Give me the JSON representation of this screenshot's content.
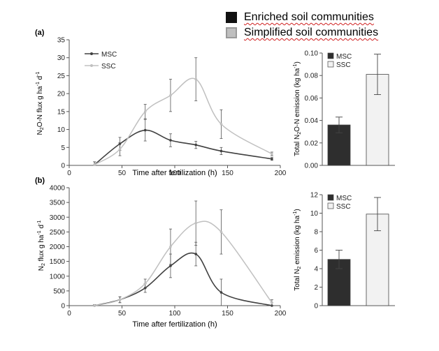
{
  "figure_legend": {
    "items": [
      {
        "label": "Enriched soil communities",
        "color": "#111111"
      },
      {
        "label": "Simplified soil communities",
        "color": "#bfbfbf"
      }
    ]
  },
  "colors": {
    "msc": "#404040",
    "ssc": "#c0c0c0",
    "bar_msc": "#2e2e2e",
    "bar_ssc": "#f2f2f2"
  },
  "chart_data": [
    {
      "id": "a_line",
      "type": "line",
      "panel_label": "(a)",
      "xlabel": "Time after fertilization (h)",
      "ylabel": "N2O-N flux g ha-1 d-1",
      "xlim": [
        0,
        200
      ],
      "ylim": [
        0,
        35
      ],
      "xticks": [
        0,
        50,
        100,
        150,
        200
      ],
      "yticks": [
        0,
        5,
        10,
        15,
        20,
        25,
        30,
        35
      ],
      "legend_position": "top-left",
      "series": [
        {
          "name": "MSC",
          "x": [
            24,
            48,
            72,
            96,
            120,
            144,
            192
          ],
          "y": [
            0.2,
            6.0,
            9.8,
            7.0,
            5.7,
            4.0,
            1.8
          ],
          "err": [
            0.8,
            1.8,
            3.0,
            1.8,
            1.0,
            1.0,
            0.4
          ]
        },
        {
          "name": "SSC",
          "x": [
            24,
            48,
            72,
            96,
            120,
            144,
            192
          ],
          "y": [
            0.2,
            4.5,
            15.0,
            19.5,
            24.0,
            11.5,
            3.2
          ],
          "err": [
            0.8,
            1.8,
            2.0,
            4.5,
            6.0,
            4.0,
            0.5
          ]
        }
      ]
    },
    {
      "id": "a_bar",
      "type": "bar",
      "ylabel": "Total N2O-N emission (kg ha-1)",
      "categories": [
        "MSC",
        "SSC"
      ],
      "values": [
        0.036,
        0.081
      ],
      "err": [
        0.007,
        0.018
      ],
      "ylim": [
        0,
        0.1
      ],
      "yticks": [
        "0.00",
        "0.02",
        "0.04",
        "0.06",
        "0.08",
        "0.10"
      ],
      "legend_position": "top-left"
    },
    {
      "id": "b_line",
      "type": "line",
      "panel_label": "(b)",
      "xlabel": "Time after fertilization (h)",
      "ylabel": "N2 flux g ha-1 d-1",
      "xlim": [
        0,
        200
      ],
      "ylim": [
        0,
        4000
      ],
      "xticks": [
        0,
        50,
        100,
        150,
        200
      ],
      "yticks": [
        0,
        500,
        1000,
        1500,
        2000,
        2500,
        3000,
        3500,
        4000
      ],
      "legend_position": "none",
      "series": [
        {
          "name": "MSC",
          "x": [
            24,
            48,
            72,
            96,
            120,
            144,
            192
          ],
          "y": [
            0,
            200,
            600,
            1350,
            1750,
            450,
            0
          ],
          "err": [
            30,
            100,
            150,
            400,
            400,
            450,
            100
          ]
        },
        {
          "name": "SSC",
          "x": [
            24,
            48,
            72,
            96,
            120,
            144,
            192
          ],
          "y": [
            0,
            200,
            750,
            2000,
            2800,
            2500,
            100
          ],
          "err": [
            30,
            100,
            150,
            600,
            750,
            750,
            100
          ]
        }
      ]
    },
    {
      "id": "b_bar",
      "type": "bar",
      "ylabel": "Total N2 emission (kg ha-1)",
      "categories": [
        "MSC",
        "SSC"
      ],
      "values": [
        5.0,
        9.9
      ],
      "err": [
        1.0,
        1.8
      ],
      "ylim": [
        0,
        12
      ],
      "yticks": [
        "0",
        "2",
        "4",
        "6",
        "8",
        "10",
        "12"
      ],
      "legend_position": "top-left"
    }
  ]
}
